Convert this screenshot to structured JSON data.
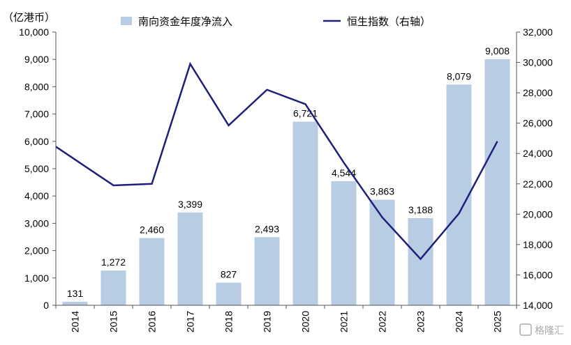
{
  "chart_data": {
    "type": "bar",
    "y_unit_label": "（亿港币）",
    "categories": [
      "2014",
      "2015",
      "2016",
      "2017",
      "2018",
      "2019",
      "2020",
      "2021",
      "2022",
      "2023",
      "2024",
      "2025"
    ],
    "series": [
      {
        "name": "南向资金年度净流入",
        "type": "bar",
        "axis": "left",
        "color": "#b8cce4",
        "values": [
          131,
          1272,
          2460,
          3399,
          827,
          2493,
          6721,
          4544,
          3863,
          3188,
          8079,
          9008
        ],
        "labels": [
          "131",
          "1,272",
          "2,460",
          "3,399",
          "827",
          "2,493",
          "6,721",
          "4,544",
          "3,863",
          "3,188",
          "8,079",
          "9,008"
        ]
      },
      {
        "name": "恒生指数（右轴）",
        "type": "line",
        "axis": "right",
        "color": "#1f1f7a",
        "values": [
          23600,
          21900,
          22000,
          29900,
          25850,
          28200,
          27250,
          23400,
          19800,
          17050,
          20050,
          24800
        ]
      }
    ],
    "y_left": {
      "min": 0,
      "max": 10000,
      "step": 1000,
      "ticks": [
        "0",
        "1,000",
        "2,000",
        "3,000",
        "4,000",
        "5,000",
        "6,000",
        "7,000",
        "8,000",
        "9,000",
        "10,000"
      ]
    },
    "y_right": {
      "min": 14000,
      "max": 32000,
      "step": 2000,
      "ticks": [
        "14,000",
        "16,000",
        "18,000",
        "20,000",
        "22,000",
        "24,000",
        "26,000",
        "28,000",
        "30,000",
        "32,000"
      ]
    },
    "grid": false,
    "legend_position": "top",
    "line_extends_to_left_edge": true
  },
  "watermark": "格隆汇"
}
